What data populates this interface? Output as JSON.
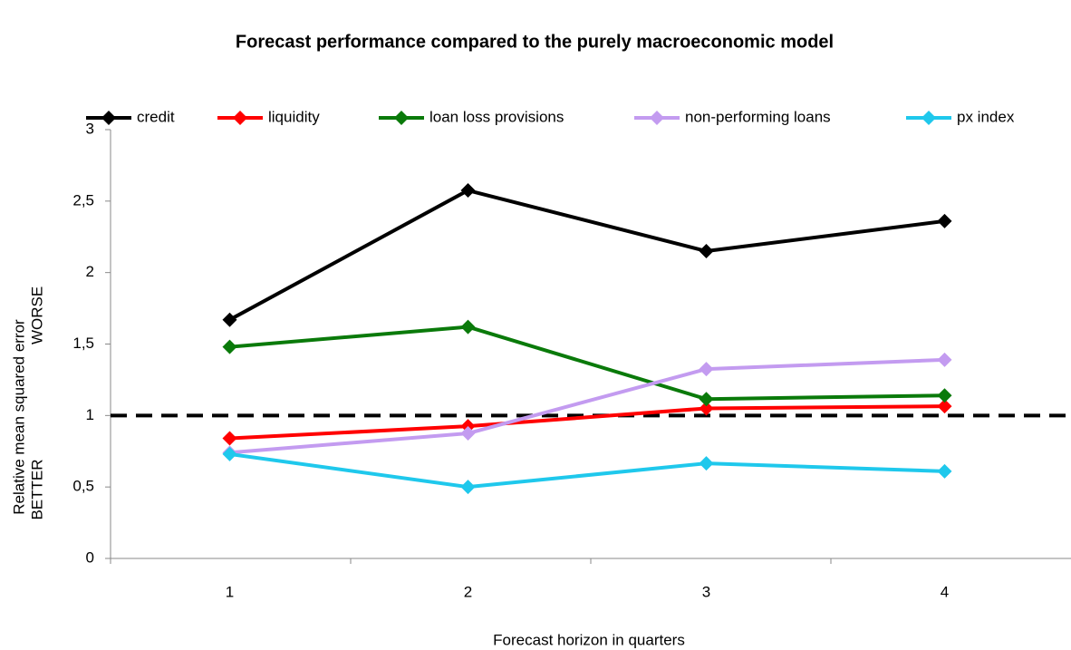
{
  "chart_data": {
    "type": "line",
    "title": "Forecast performance compared to the purely macroeconomic model",
    "xlabel": "Forecast horizon in quarters",
    "ylabel": "Relative mean squared error",
    "annotations": [
      "WORSE",
      "BETTER"
    ],
    "categories": [
      "1",
      "2",
      "3",
      "4"
    ],
    "series": [
      {
        "name": "credit",
        "color": "#000000",
        "values": [
          1.67,
          2.575,
          2.15,
          2.36
        ]
      },
      {
        "name": "liquidity",
        "color": "#ff0000",
        "values": [
          0.84,
          0.925,
          1.05,
          1.065
        ]
      },
      {
        "name": "loan loss provisions",
        "color": "#0a7a0a",
        "values": [
          1.48,
          1.62,
          1.115,
          1.14
        ]
      },
      {
        "name": "non-performing loans",
        "color": "#c39bf0",
        "values": [
          0.74,
          0.875,
          1.325,
          1.39
        ]
      },
      {
        "name": "px index",
        "color": "#1fc8ec",
        "values": [
          0.73,
          0.5,
          0.665,
          0.61
        ]
      }
    ],
    "reference_line": 1,
    "ylim": [
      0,
      3
    ],
    "yticks": [
      0,
      {
        "value": 0.5,
        "label": "0,5"
      },
      1,
      {
        "value": 1.5,
        "label": "1,5"
      },
      2,
      {
        "value": 2.5,
        "label": "2,5"
      },
      3
    ],
    "grid": false,
    "legend": "top"
  }
}
